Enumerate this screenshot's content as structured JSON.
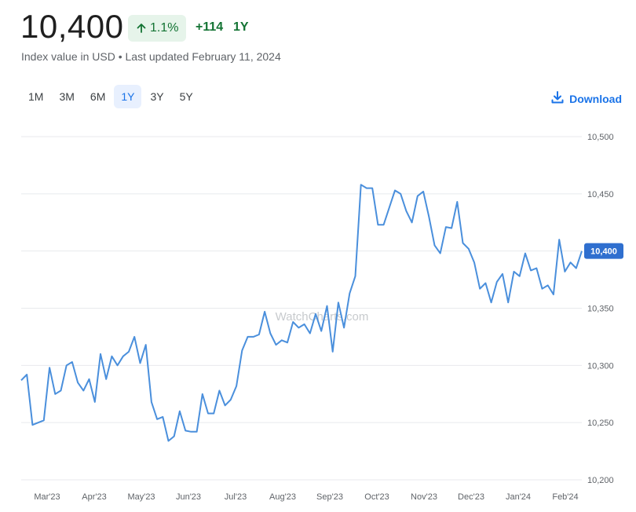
{
  "header": {
    "value": "10,400",
    "pct_change": "1.1%",
    "abs_change": "+114",
    "period": "1Y",
    "subtitle": "Index value in USD • Last updated February 11, 2024"
  },
  "ranges": [
    {
      "label": "1M",
      "active": false
    },
    {
      "label": "3M",
      "active": false
    },
    {
      "label": "6M",
      "active": false
    },
    {
      "label": "1Y",
      "active": true
    },
    {
      "label": "3Y",
      "active": false
    },
    {
      "label": "5Y",
      "active": false
    }
  ],
  "download_label": "Download",
  "colors": {
    "line": "#4a8fdc",
    "positive": "#137333",
    "accent": "#1a73e8"
  },
  "chart_data": {
    "type": "line",
    "title": "",
    "xlabel": "",
    "ylabel": "",
    "watermark": "WatchCharts.com",
    "ylim": [
      10200,
      10500
    ],
    "y_ticks": [
      "10,200",
      "10,250",
      "10,300",
      "10,350",
      "10,400",
      "10,450",
      "10,500"
    ],
    "y_tick_values": [
      10200,
      10250,
      10300,
      10350,
      10400,
      10450,
      10500
    ],
    "x_ticks": [
      "Mar'23",
      "Apr'23",
      "May'23",
      "Jun'23",
      "Jul'23",
      "Aug'23",
      "Sep'23",
      "Oct'23",
      "Nov'23",
      "Dec'23",
      "Jan'24",
      "Feb'24"
    ],
    "y_axis_position": "right",
    "grid": true,
    "last_value_label": "10,400",
    "series": [
      {
        "values": [
          10287,
          10292,
          10248,
          10250,
          10252,
          10298,
          10275,
          10278,
          10300,
          10303,
          10285,
          10278,
          10288,
          10268,
          10310,
          10288,
          10308,
          10300,
          10308,
          10312,
          10325,
          10302,
          10318,
          10268,
          10253,
          10255,
          10234,
          10238,
          10260,
          10243,
          10242,
          10242,
          10275,
          10258,
          10258,
          10278,
          10265,
          10270,
          10282,
          10313,
          10325,
          10325,
          10327,
          10347,
          10328,
          10318,
          10322,
          10320,
          10338,
          10333,
          10336,
          10328,
          10345,
          10330,
          10352,
          10312,
          10355,
          10333,
          10363,
          10378,
          10458,
          10455,
          10455,
          10423,
          10423,
          10438,
          10453,
          10450,
          10435,
          10425,
          10448,
          10452,
          10430,
          10405,
          10398,
          10421,
          10420,
          10443,
          10407,
          10402,
          10390,
          10367,
          10372,
          10355,
          10373,
          10380,
          10355,
          10382,
          10378,
          10398,
          10383,
          10385,
          10367,
          10370,
          10362,
          10410,
          10382,
          10390,
          10385,
          10400
        ]
      }
    ]
  }
}
